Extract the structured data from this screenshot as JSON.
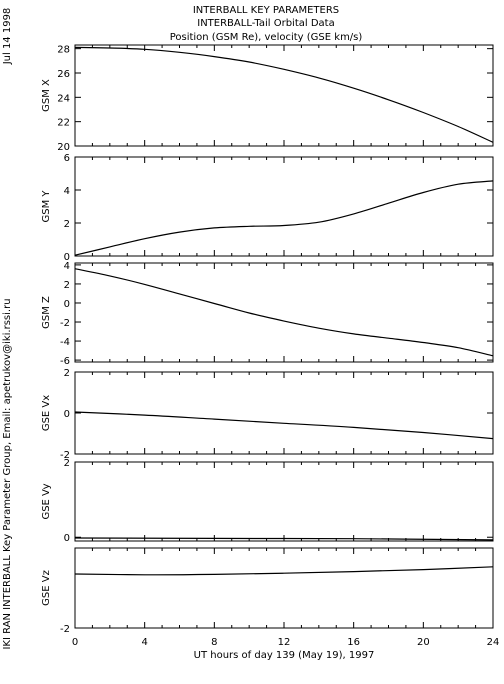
{
  "titles": [
    "INTERBALL KEY PARAMETERS",
    "INTERBALL-Tail Orbital Data",
    "Position (GSM Re), velocity (GSE km/s)"
  ],
  "side_date": "Jul 14 1998",
  "side_credit": "IKI RAN INTERBALL Key Parameter Group, Email: apetrukov@iki.rssi.ru",
  "colors": {
    "line": "#000000",
    "background": "#ffffff"
  },
  "chart_data": {
    "type": "line",
    "x_label": "UT hours of day 139 (May 19), 1997",
    "x_range": [
      0,
      24
    ],
    "x_ticks": [
      "0",
      "4",
      "8",
      "12",
      "16",
      "20",
      "24"
    ],
    "panels": [
      {
        "ylabel": "GSM X",
        "ylim": [
          20,
          28.3
        ],
        "yticks": [
          20,
          22,
          24,
          26,
          28
        ],
        "x": [
          0,
          2,
          4,
          6,
          8,
          10,
          12,
          14,
          16,
          18,
          20,
          22,
          24
        ],
        "y": [
          28.1,
          28.05,
          27.95,
          27.7,
          27.35,
          26.9,
          26.3,
          25.6,
          24.75,
          23.8,
          22.75,
          21.6,
          20.3
        ]
      },
      {
        "ylabel": "GSM Y",
        "ylim": [
          0,
          6
        ],
        "yticks": [
          0,
          2,
          4,
          6
        ],
        "x": [
          0,
          2,
          4,
          6,
          8,
          10,
          12,
          14,
          16,
          18,
          20,
          22,
          24
        ],
        "y": [
          0.05,
          0.55,
          1.05,
          1.45,
          1.7,
          1.8,
          1.85,
          2.05,
          2.55,
          3.2,
          3.85,
          4.35,
          4.55
        ]
      },
      {
        "ylabel": "GSM Z",
        "ylim": [
          -6.2,
          4.2
        ],
        "yticks": [
          -6,
          -4,
          -2,
          0,
          2,
          4
        ],
        "x": [
          0,
          2,
          4,
          6,
          8,
          10,
          12,
          14,
          16,
          18,
          20,
          22,
          24
        ],
        "y": [
          3.6,
          2.85,
          1.95,
          0.95,
          -0.05,
          -1.05,
          -1.9,
          -2.65,
          -3.25,
          -3.7,
          -4.15,
          -4.7,
          -5.55
        ]
      },
      {
        "ylabel": "GSE Vx",
        "ylim": [
          -2,
          2
        ],
        "yticks": [
          -2,
          0,
          2
        ],
        "x": [
          0,
          4,
          8,
          12,
          16,
          20,
          24
        ],
        "y": [
          0.05,
          -0.1,
          -0.3,
          -0.5,
          -0.7,
          -0.95,
          -1.25
        ]
      },
      {
        "ylabel": "GSE Vy",
        "ylim": [
          -0.1,
          2
        ],
        "yticks": [
          0,
          2
        ],
        "x": [
          0,
          8,
          16,
          24
        ],
        "y": [
          -0.02,
          -0.03,
          -0.04,
          -0.07
        ]
      },
      {
        "ylabel": "GSE Vz",
        "ylim": [
          -2,
          0
        ],
        "yticks": [
          -2
        ],
        "x": [
          0,
          4,
          8,
          12,
          16,
          20,
          24
        ],
        "y": [
          -0.65,
          -0.67,
          -0.66,
          -0.63,
          -0.59,
          -0.54,
          -0.47
        ]
      }
    ]
  }
}
